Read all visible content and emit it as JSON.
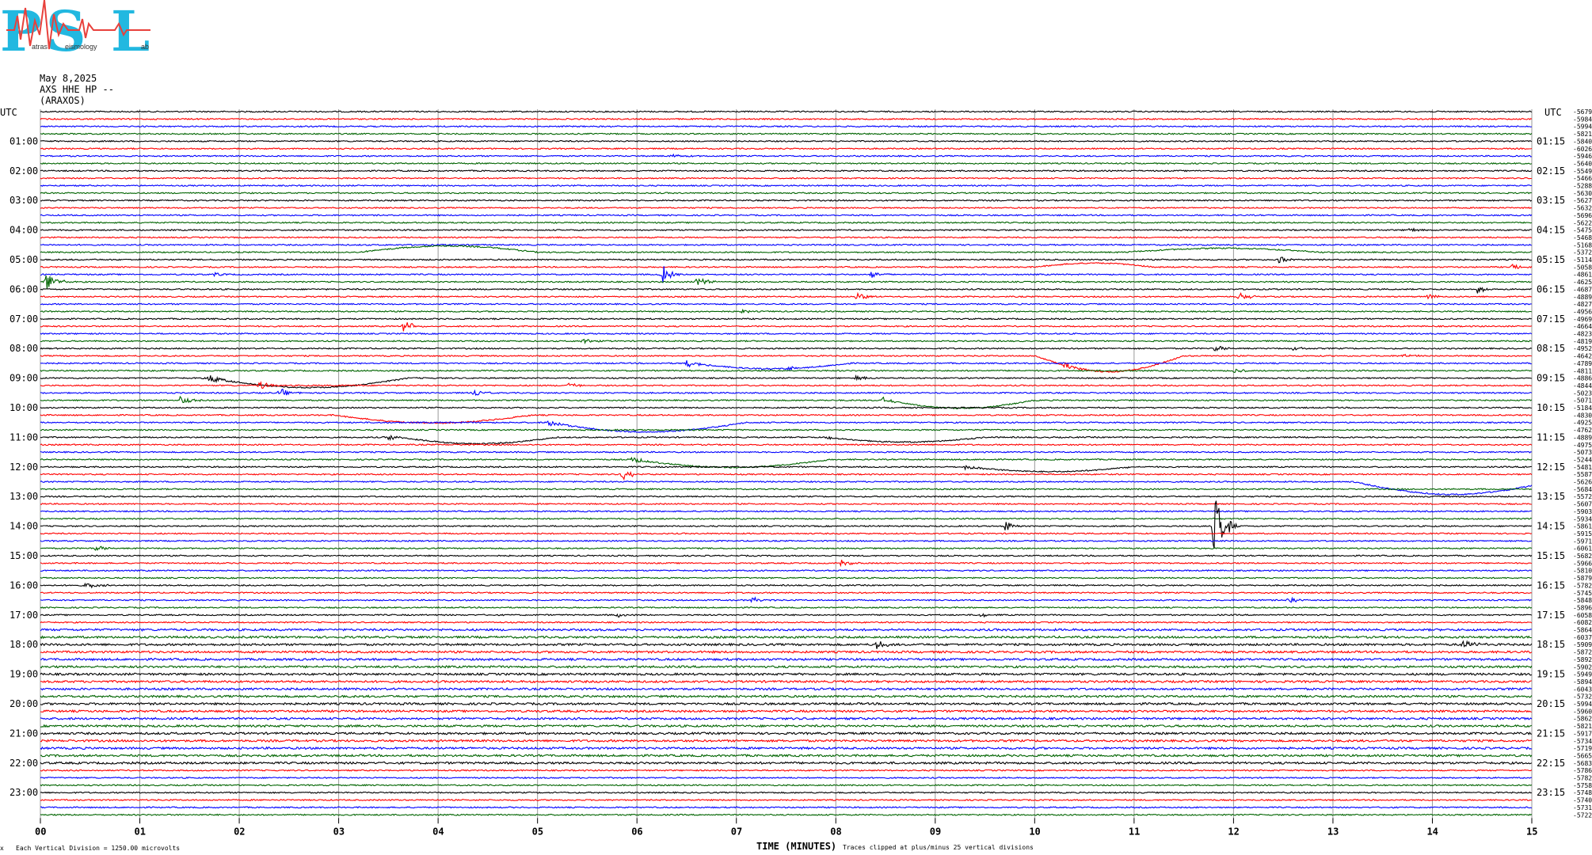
{
  "logo": {
    "letters": [
      "P",
      "S",
      "L"
    ],
    "words": [
      "atras",
      "eismology",
      "ab"
    ],
    "colors": {
      "letters": "#22b8e0",
      "wave": "#e8413c"
    }
  },
  "header": {
    "date": "May 8,2025",
    "station": "AXS HHE HP --",
    "site": "(ARAXOS)"
  },
  "footer": {
    "scale_note": "Each Vertical Division = 1250.00 microvolts",
    "clip_note": "Traces clipped at plus/minus 25 vertical divisions",
    "corner_mark": "x"
  },
  "chart_data": {
    "type": "line",
    "xlabel": "TIME (MINUTES)",
    "x_ticks": [
      "00",
      "01",
      "02",
      "03",
      "04",
      "05",
      "06",
      "07",
      "08",
      "09",
      "10",
      "11",
      "12",
      "13",
      "14",
      "15"
    ],
    "xlim": [
      0,
      15
    ],
    "left_axis_title": "UTC",
    "right_axis_title": "UTC",
    "left_hour_labels": [
      "01:00",
      "02:00",
      "03:00",
      "04:00",
      "05:00",
      "06:00",
      "07:00",
      "08:00",
      "09:00",
      "10:00",
      "11:00",
      "12:00",
      "13:00",
      "14:00",
      "15:00",
      "16:00",
      "17:00",
      "18:00",
      "19:00",
      "20:00",
      "21:00",
      "22:00",
      "23:00"
    ],
    "right_hour_labels": [
      "01:15",
      "02:15",
      "03:15",
      "04:15",
      "05:15",
      "06:15",
      "07:15",
      "08:15",
      "09:15",
      "10:15",
      "11:15",
      "12:15",
      "13:15",
      "14:15",
      "15:15",
      "16:15",
      "17:15",
      "18:15",
      "19:15",
      "20:15",
      "21:15",
      "22:15",
      "23:15"
    ],
    "trace_colors": [
      "#000000",
      "#ff0000",
      "#0000ff",
      "#006400"
    ],
    "trace_minutes": 15,
    "trace_count": 96,
    "right_offsets": [
      "-5679",
      "-5984",
      "-5994",
      "-5821",
      "-5840",
      "-6026",
      "-5946",
      "-5640",
      "-5549",
      "-5466",
      "-5288",
      "-5630",
      "-5627",
      "-5632",
      "-5696",
      "-5622",
      "-5475",
      "-5468",
      "-5168",
      "-5372",
      "-5114",
      "-5058",
      "-4861",
      "-4625",
      "-4687",
      "-4889",
      "-4827",
      "-4956",
      "-4969",
      "-4664",
      "-4823",
      "-4819",
      "-4952",
      "-4642",
      "-4789",
      "-4811",
      "-4886",
      "-4844",
      "-5023",
      "-5071",
      "-5184",
      "-4830",
      "-4925",
      "-4762",
      "-4889",
      "-4975",
      "-5073",
      "-5244",
      "-5481",
      "-5587",
      "-5626",
      "-5684",
      "-5572",
      "-5607",
      "-5903",
      "-5934",
      "-5861",
      "-5915",
      "-5971",
      "-6061",
      "-5682",
      "-5966",
      "-5810",
      "-5879",
      "-5782",
      "-5745",
      "-5848",
      "-5896",
      "-6058",
      "-6082",
      "-5864",
      "-6037",
      "-5909",
      "-5872",
      "-5892",
      "-5902",
      "-5949",
      "-5894",
      "-6043",
      "-5732",
      "-5994",
      "-5960",
      "-5862",
      "-5821",
      "-5917",
      "-5734",
      "-5719",
      "-5665",
      "-5683",
      "-5786",
      "-5782",
      "-5758",
      "-5748",
      "-5740",
      "-5731",
      "-5722"
    ],
    "events": [
      {
        "trace": 6,
        "minute": 6.35,
        "amp": 3,
        "dur": 0.25
      },
      {
        "trace": 16,
        "minute": 13.75,
        "amp": 4,
        "dur": 0.2
      },
      {
        "trace": 20,
        "minute": 12.45,
        "amp": 5,
        "dur": 0.25
      },
      {
        "trace": 21,
        "minute": 14.8,
        "amp": 5,
        "dur": 0.2
      },
      {
        "trace": 22,
        "minute": 1.75,
        "amp": 4,
        "dur": 0.15
      },
      {
        "trace": 22,
        "minute": 6.25,
        "amp": 14,
        "dur": 0.2
      },
      {
        "trace": 22,
        "minute": 8.35,
        "amp": 6,
        "dur": 0.2
      },
      {
        "trace": 23,
        "minute": 0.05,
        "amp": 14,
        "dur": 0.25
      },
      {
        "trace": 23,
        "minute": 6.6,
        "amp": 8,
        "dur": 0.25
      },
      {
        "trace": 24,
        "minute": 14.45,
        "amp": 7,
        "dur": 0.2
      },
      {
        "trace": 25,
        "minute": 8.2,
        "amp": 7,
        "dur": 0.25
      },
      {
        "trace": 25,
        "minute": 12.05,
        "amp": 6,
        "dur": 0.25
      },
      {
        "trace": 25,
        "minute": 13.95,
        "amp": 4,
        "dur": 0.2
      },
      {
        "trace": 27,
        "minute": 7.05,
        "amp": 4,
        "dur": 0.15
      },
      {
        "trace": 29,
        "minute": 3.65,
        "amp": 9,
        "dur": 0.3
      },
      {
        "trace": 31,
        "minute": 5.45,
        "amp": 4,
        "dur": 0.2
      },
      {
        "trace": 32,
        "minute": 11.8,
        "amp": 5,
        "dur": 0.25
      },
      {
        "trace": 32,
        "minute": 12.6,
        "amp": 3,
        "dur": 0.2
      },
      {
        "trace": 33,
        "minute": 10.3,
        "amp": 5,
        "dur": 0.3
      },
      {
        "trace": 33,
        "minute": 13.7,
        "amp": 3,
        "dur": 0.25
      },
      {
        "trace": 34,
        "minute": 6.5,
        "amp": 6,
        "dur": 0.3
      },
      {
        "trace": 34,
        "minute": 7.5,
        "amp": 4,
        "dur": 0.2
      },
      {
        "trace": 35,
        "minute": 12.0,
        "amp": 4,
        "dur": 0.2
      },
      {
        "trace": 36,
        "minute": 1.7,
        "amp": 8,
        "dur": 0.25
      },
      {
        "trace": 36,
        "minute": 8.2,
        "amp": 4,
        "dur": 0.2
      },
      {
        "trace": 37,
        "minute": 2.2,
        "amp": 6,
        "dur": 0.25
      },
      {
        "trace": 37,
        "minute": 5.3,
        "amp": 4,
        "dur": 0.25
      },
      {
        "trace": 38,
        "minute": 2.4,
        "amp": 6,
        "dur": 0.25
      },
      {
        "trace": 38,
        "minute": 4.35,
        "amp": 6,
        "dur": 0.25
      },
      {
        "trace": 39,
        "minute": 1.4,
        "amp": 8,
        "dur": 0.25
      },
      {
        "trace": 39,
        "minute": 8.45,
        "amp": 5,
        "dur": 0.25
      },
      {
        "trace": 42,
        "minute": 5.1,
        "amp": 6,
        "dur": 0.3
      },
      {
        "trace": 44,
        "minute": 3.5,
        "amp": 4,
        "dur": 0.25
      },
      {
        "trace": 44,
        "minute": 7.9,
        "amp": 4,
        "dur": 0.25
      },
      {
        "trace": 47,
        "minute": 5.95,
        "amp": 5,
        "dur": 0.3
      },
      {
        "trace": 48,
        "minute": 9.3,
        "amp": 4,
        "dur": 0.25
      },
      {
        "trace": 48,
        "minute": 14.9,
        "amp": 3,
        "dur": 0.15
      },
      {
        "trace": 49,
        "minute": 5.85,
        "amp": 8,
        "dur": 0.25
      },
      {
        "trace": 56,
        "minute": 9.7,
        "amp": 10,
        "dur": 0.15
      },
      {
        "trace": 56,
        "minute": 11.8,
        "amp": 45,
        "dur": 0.25
      },
      {
        "trace": 59,
        "minute": 0.55,
        "amp": 4,
        "dur": 0.25
      },
      {
        "trace": 61,
        "minute": 8.05,
        "amp": 5,
        "dur": 0.25
      },
      {
        "trace": 64,
        "minute": 0.45,
        "amp": 4,
        "dur": 0.3
      },
      {
        "trace": 66,
        "minute": 7.15,
        "amp": 4,
        "dur": 0.25
      },
      {
        "trace": 66,
        "minute": 12.55,
        "amp": 6,
        "dur": 0.25
      },
      {
        "trace": 68,
        "minute": 5.8,
        "amp": 3,
        "dur": 0.2
      },
      {
        "trace": 68,
        "minute": 9.45,
        "amp": 3,
        "dur": 0.2
      },
      {
        "trace": 72,
        "minute": 8.4,
        "amp": 9,
        "dur": 0.2
      },
      {
        "trace": 72,
        "minute": 14.3,
        "amp": 7,
        "dur": 0.3
      }
    ],
    "long_period": [
      {
        "trace": 19,
        "start": 3.2,
        "dur": 1.8,
        "amp": -8
      },
      {
        "trace": 19,
        "start": 10.9,
        "dur": 2.0,
        "amp": -5
      },
      {
        "trace": 21,
        "start": 10.0,
        "dur": 1.2,
        "amp": -5
      },
      {
        "trace": 33,
        "start": 10.0,
        "dur": 1.5,
        "amp": 20
      },
      {
        "trace": 34,
        "start": 6.55,
        "dur": 1.6,
        "amp": 7
      },
      {
        "trace": 36,
        "start": 1.7,
        "dur": 2.0,
        "amp": 12
      },
      {
        "trace": 39,
        "start": 8.5,
        "dur": 1.5,
        "amp": 10
      },
      {
        "trace": 41,
        "start": 2.95,
        "dur": 2.0,
        "amp": 10
      },
      {
        "trace": 42,
        "start": 5.1,
        "dur": 2.0,
        "amp": 12
      },
      {
        "trace": 44,
        "start": 3.6,
        "dur": 1.6,
        "amp": 8
      },
      {
        "trace": 44,
        "start": 7.9,
        "dur": 1.6,
        "amp": 6
      },
      {
        "trace": 47,
        "start": 5.95,
        "dur": 2.0,
        "amp": 10
      },
      {
        "trace": 48,
        "start": 9.3,
        "dur": 1.7,
        "amp": 6
      },
      {
        "trace": 50,
        "start": 13.2,
        "dur": 2.0,
        "amp": 16
      }
    ]
  }
}
